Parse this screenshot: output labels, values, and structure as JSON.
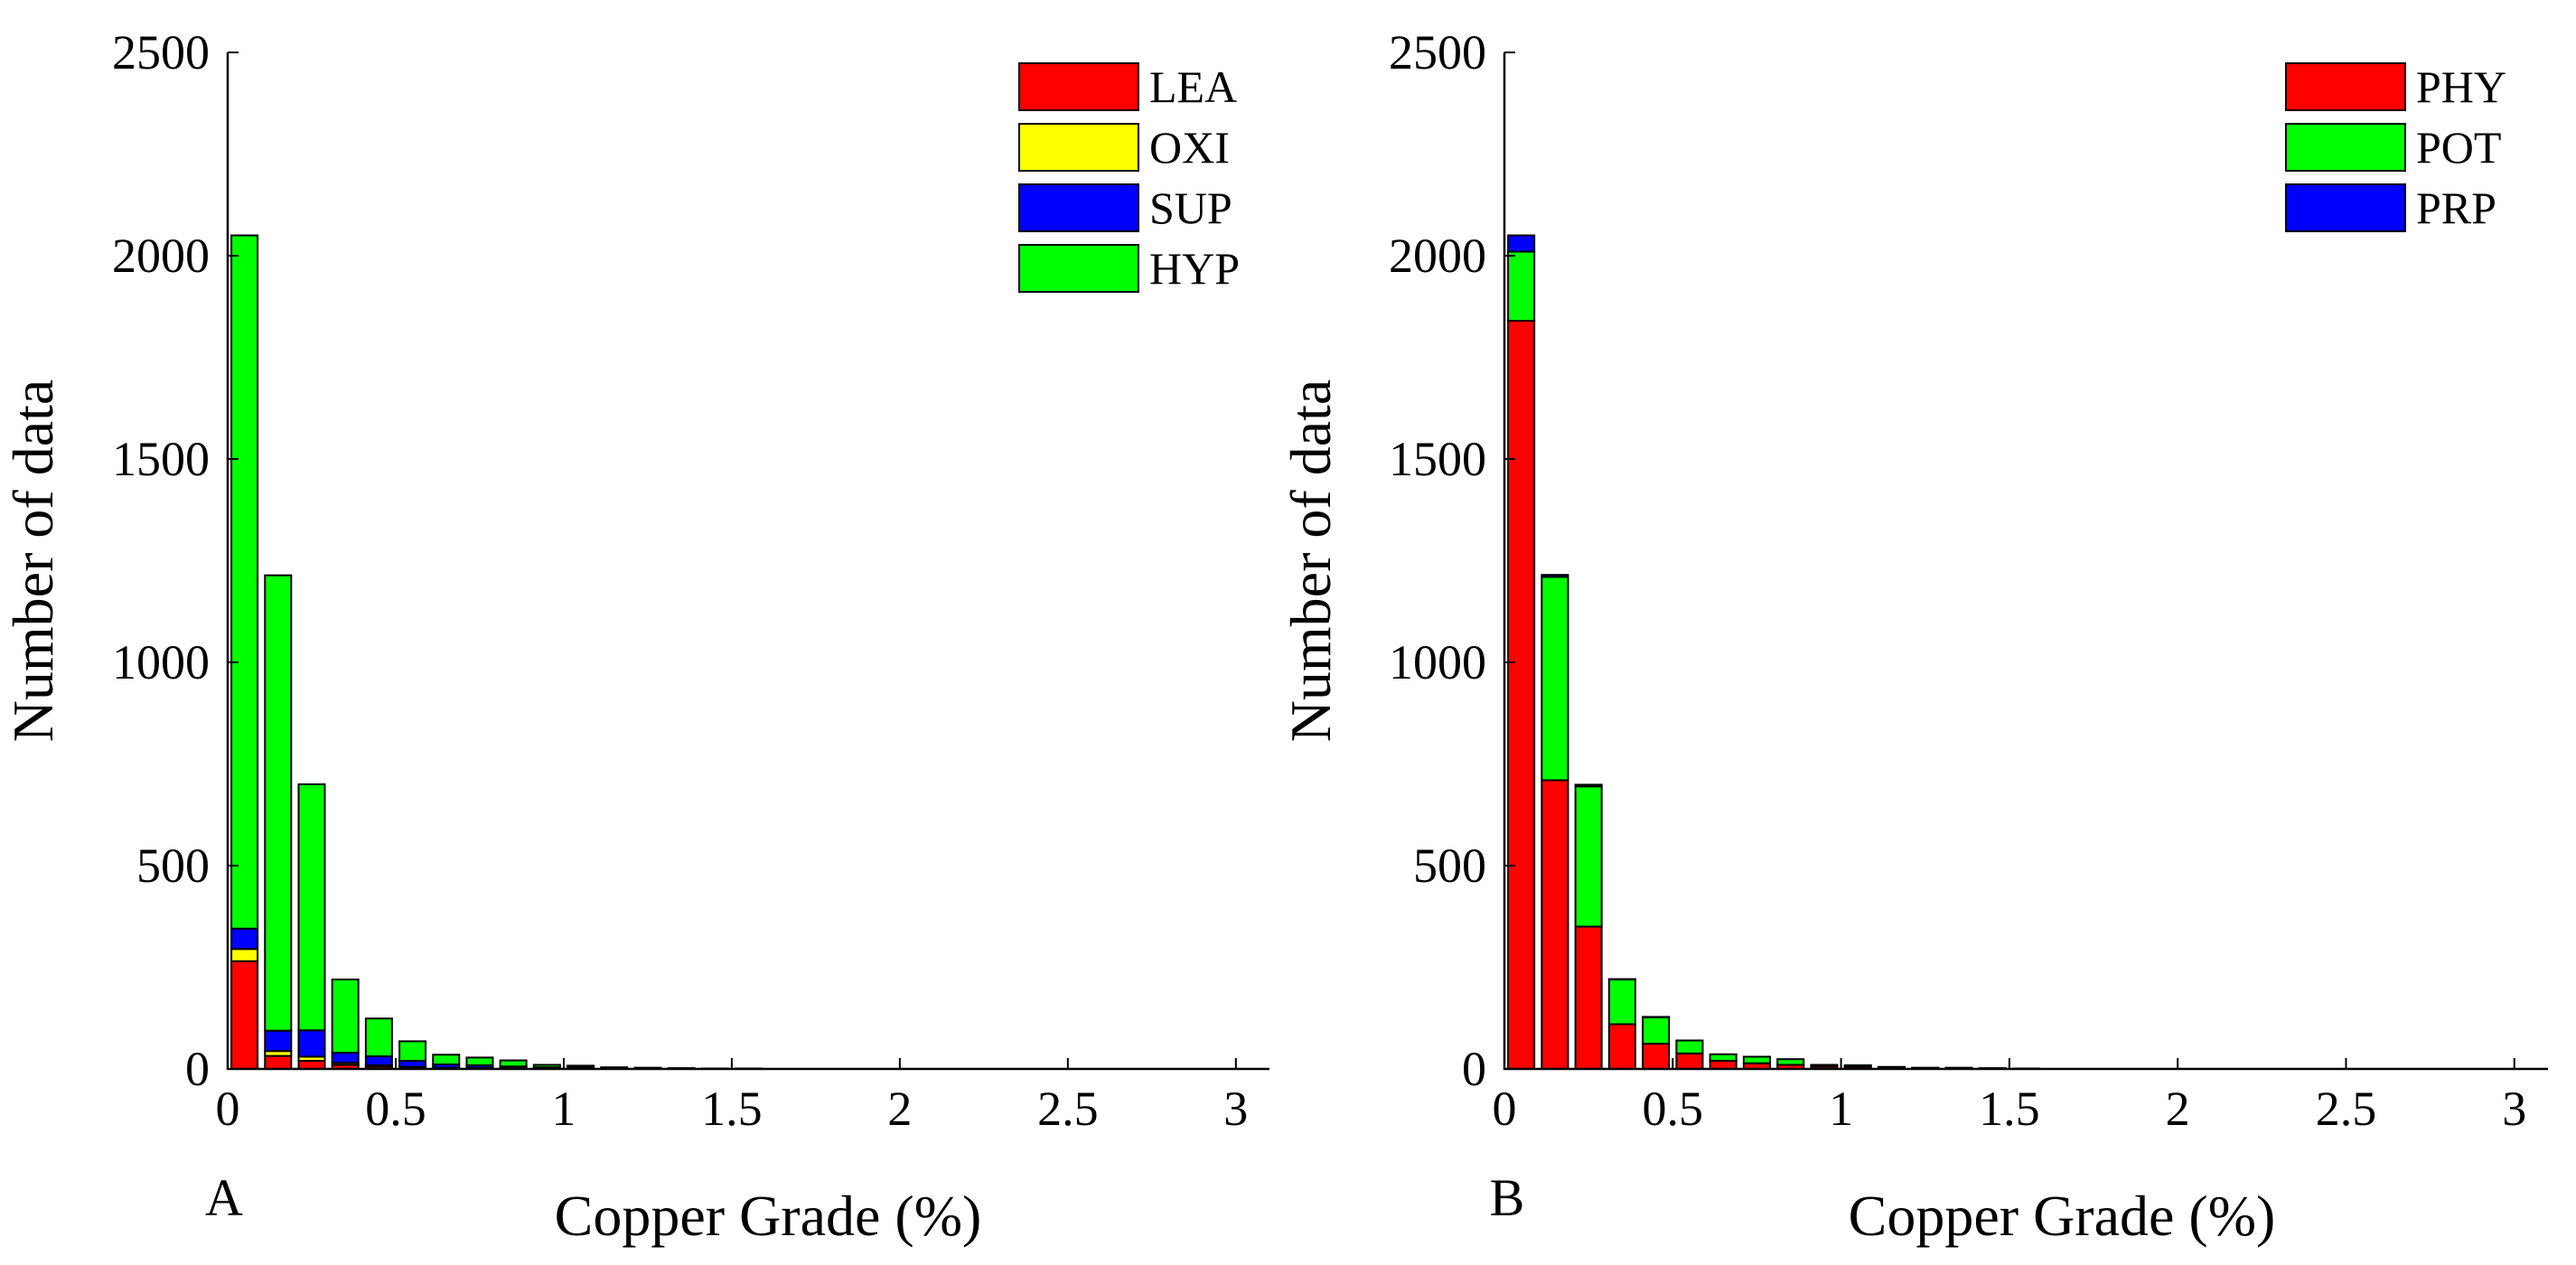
{
  "chart_data": [
    {
      "type": "bar",
      "stacked": true,
      "panel_label": "A",
      "title": "",
      "xlabel": "Copper Grade (%)",
      "ylabel": "Number of data",
      "xlim": [
        0,
        3.1
      ],
      "ylim": [
        0,
        2500
      ],
      "xticks": [
        0,
        0.5,
        1,
        1.5,
        2,
        2.5,
        3
      ],
      "xtick_labels": [
        "0",
        "0.5",
        "1",
        "1.5",
        "2",
        "2.5",
        "3"
      ],
      "yticks": [
        0,
        500,
        1000,
        1500,
        2000,
        2500
      ],
      "ytick_labels": [
        "0",
        "500",
        "1000",
        "1500",
        "2000",
        "2500"
      ],
      "bin_width": 0.1,
      "bin_centers": [
        0.05,
        0.15,
        0.25,
        0.35,
        0.45,
        0.55,
        0.65,
        0.75,
        0.85,
        0.95,
        1.05,
        1.15,
        1.25,
        1.35,
        1.45,
        1.55,
        1.65,
        1.75,
        1.85,
        1.95,
        2.05,
        2.15,
        2.25,
        2.35,
        2.45,
        2.55,
        2.65,
        2.75,
        2.85,
        2.95
      ],
      "legend_position": "top-right",
      "series": [
        {
          "name": "LEA",
          "color": "#ff0000",
          "values": [
            265,
            32,
            20,
            10,
            6,
            3,
            2,
            2,
            1,
            1,
            1,
            0,
            0,
            0,
            0,
            0,
            0,
            0,
            0,
            0,
            0,
            0,
            0,
            0,
            0,
            0,
            0,
            0,
            0,
            0
          ]
        },
        {
          "name": "OXI",
          "color": "#ffff00",
          "values": [
            30,
            12,
            10,
            5,
            3,
            2,
            1,
            1,
            1,
            0,
            0,
            0,
            0,
            0,
            0,
            0,
            0,
            0,
            0,
            0,
            0,
            0,
            0,
            0,
            0,
            0,
            0,
            0,
            0,
            0
          ]
        },
        {
          "name": "SUP",
          "color": "#0000ff",
          "values": [
            50,
            50,
            65,
            25,
            22,
            15,
            8,
            6,
            4,
            3,
            3,
            1,
            1,
            1,
            0,
            0,
            0,
            0,
            0,
            0,
            0,
            0,
            0,
            0,
            0,
            0,
            0,
            0,
            0,
            0
          ]
        },
        {
          "name": "HYP",
          "color": "#00ff00",
          "values": [
            1705,
            1120,
            605,
            180,
            93,
            48,
            24,
            19,
            15,
            6,
            4,
            3,
            2,
            1,
            1,
            1,
            0,
            0,
            0,
            0,
            0,
            0,
            0,
            0,
            0,
            0,
            0,
            0,
            0,
            0
          ]
        }
      ]
    },
    {
      "type": "bar",
      "stacked": true,
      "panel_label": "B",
      "title": "",
      "xlabel": "Copper Grade (%)",
      "ylabel": "Number of data",
      "xlim": [
        0,
        3.1
      ],
      "ylim": [
        0,
        2500
      ],
      "xticks": [
        0,
        0.5,
        1,
        1.5,
        2,
        2.5,
        3
      ],
      "xtick_labels": [
        "0",
        "0.5",
        "1",
        "1.5",
        "2",
        "2.5",
        "3"
      ],
      "yticks": [
        0,
        500,
        1000,
        1500,
        2000,
        2500
      ],
      "ytick_labels": [
        "0",
        "500",
        "1000",
        "1500",
        "2000",
        "2500"
      ],
      "bin_width": 0.1,
      "bin_centers": [
        0.05,
        0.15,
        0.25,
        0.35,
        0.45,
        0.55,
        0.65,
        0.75,
        0.85,
        0.95,
        1.05,
        1.15,
        1.25,
        1.35,
        1.45,
        1.55,
        1.65,
        1.75,
        1.85,
        1.95,
        2.05,
        2.15,
        2.25,
        2.35,
        2.45,
        2.55,
        2.65,
        2.75,
        2.85,
        2.95
      ],
      "legend_position": "top-right",
      "series": [
        {
          "name": "PHY",
          "color": "#ff0000",
          "values": [
            1840,
            710,
            350,
            110,
            62,
            38,
            20,
            14,
            10,
            6,
            5,
            3,
            2,
            2,
            1,
            1,
            0,
            0,
            0,
            0,
            0,
            0,
            0,
            0,
            0,
            0,
            0,
            0,
            0,
            0
          ]
        },
        {
          "name": "POT",
          "color": "#00ff00",
          "values": [
            170,
            500,
            345,
            110,
            65,
            32,
            16,
            16,
            14,
            4,
            4,
            2,
            1,
            1,
            1,
            0,
            0,
            0,
            0,
            0,
            0,
            0,
            0,
            0,
            0,
            0,
            0,
            0,
            0,
            0
          ]
        },
        {
          "name": "PRP",
          "color": "#0000ff",
          "values": [
            40,
            5,
            4,
            1,
            1,
            0,
            0,
            0,
            0,
            0,
            0,
            0,
            0,
            0,
            0,
            0,
            0,
            0,
            0,
            0,
            0,
            0,
            0,
            0,
            0,
            0,
            0,
            0,
            0,
            0
          ]
        }
      ]
    }
  ]
}
